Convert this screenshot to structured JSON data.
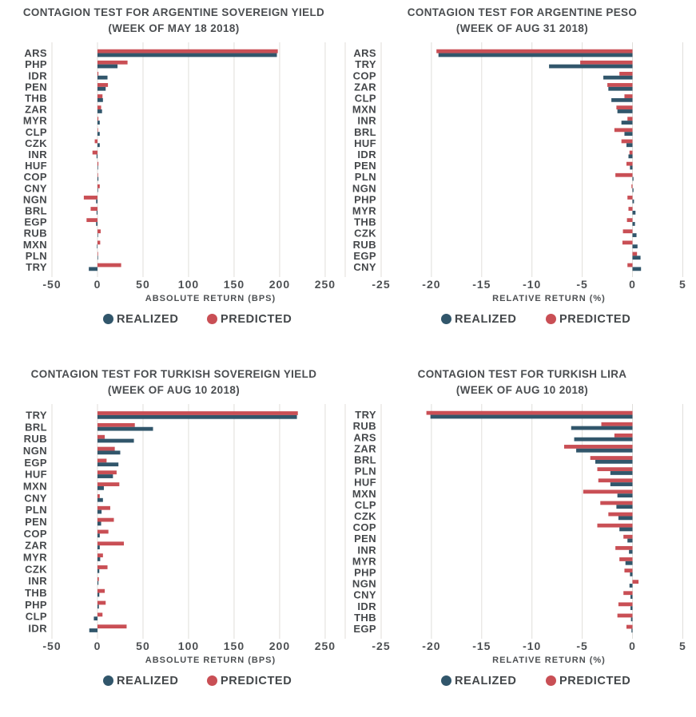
{
  "colors": {
    "realized": "#31566b",
    "predicted": "#c94f55",
    "grid": "#e0deda",
    "title_text": "#4a4d50",
    "tick_text": "#4d5053",
    "background": "#ffffff"
  },
  "chart_data": [
    {
      "type": "bar",
      "orientation": "horizontal",
      "title_line1": "CONTAGION TEST FOR ARGENTINE SOVEREIGN YIELD",
      "title_line2": "(WEEK OF MAY 18 2018)",
      "xlabel": "ABSOLUTE RETURN (BPS)",
      "xticks": [
        -50,
        0,
        50,
        100,
        150,
        200,
        250
      ],
      "xlim": [
        -50,
        272
      ],
      "grid": true,
      "legend_position": "bottom",
      "categories": [
        "ARS",
        "PHP",
        "IDR",
        "PEN",
        "THB",
        "ZAR",
        "MYR",
        "CLP",
        "CZK",
        "INR",
        "HUF",
        "COP",
        "CNY",
        "NGN",
        "BRL",
        "EGP",
        "RUB",
        "MXN",
        "PLN",
        "TRY"
      ],
      "series": [
        {
          "name": "REALIZED",
          "color": "#31566b",
          "values": [
            197,
            22,
            11,
            9,
            6,
            5,
            2.5,
            2.5,
            2.5,
            -1,
            0.5,
            1,
            0.5,
            -1.5,
            -1,
            -1.5,
            0.5,
            -0.5,
            0.5,
            -9.5
          ]
        },
        {
          "name": "PREDICTED",
          "color": "#c94f55",
          "values": [
            198,
            33,
            1,
            11.5,
            5.5,
            4,
            1,
            0.5,
            -3,
            -5.5,
            1,
            0.5,
            2.5,
            -15,
            -7.5,
            -12,
            3.5,
            3,
            0.5,
            26
          ]
        }
      ]
    },
    {
      "type": "bar",
      "orientation": "horizontal",
      "title_line1": "CONTAGION TEST FOR ARGENTINE PESO",
      "title_line2": "(WEEK OF AUG 31 2018)",
      "xlabel": "RELATIVE RETURN (%)",
      "xticks": [
        -25,
        -20,
        -15,
        -10,
        -5,
        0,
        5
      ],
      "xlim": [
        -25,
        6
      ],
      "grid": true,
      "legend_position": "bottom",
      "categories": [
        "ARS",
        "TRY",
        "COP",
        "ZAR",
        "CLP",
        "MXN",
        "INR",
        "BRL",
        "HUF",
        "IDR",
        "PEN",
        "PLN",
        "NGN",
        "PHP",
        "MYR",
        "THB",
        "CZK",
        "RUB",
        "EGP",
        "CNY"
      ],
      "series": [
        {
          "name": "REALIZED",
          "color": "#31566b",
          "values": [
            -19.3,
            -8.3,
            -2.9,
            -2.4,
            -2.1,
            -1.5,
            -1.1,
            -0.8,
            -0.6,
            -0.4,
            -0.25,
            0.1,
            0.1,
            0.15,
            0.3,
            0.25,
            0.4,
            0.5,
            0.8,
            0.85
          ]
        },
        {
          "name": "PREDICTED",
          "color": "#c94f55",
          "values": [
            -19.5,
            -5.2,
            -1.3,
            -2.5,
            -0.8,
            -1.6,
            -0.5,
            -1.8,
            -1.1,
            -0.3,
            -0.6,
            -1.7,
            -0.1,
            -0.5,
            -0.4,
            -0.55,
            -0.95,
            -1.0,
            0.45,
            -0.5
          ]
        }
      ]
    },
    {
      "type": "bar",
      "orientation": "horizontal",
      "title_line1": "CONTAGION TEST FOR TURKISH SOVEREIGN YIELD",
      "title_line2": "(WEEK OF AUG 10 2018)",
      "xlabel": "ABSOLUTE RETURN (BPS)",
      "xticks": [
        -50,
        0,
        50,
        100,
        150,
        200,
        250
      ],
      "xlim": [
        -50,
        272
      ],
      "grid": true,
      "legend_position": "bottom",
      "categories": [
        "TRY",
        "BRL",
        "RUB",
        "NGN",
        "EGP",
        "HUF",
        "MXN",
        "CNY",
        "PLN",
        "PEN",
        "COP",
        "ZAR",
        "MYR",
        "CZK",
        "INR",
        "THB",
        "PHP",
        "CLP",
        "IDR"
      ],
      "series": [
        {
          "name": "REALIZED",
          "color": "#31566b",
          "values": [
            219,
            61,
            40,
            25,
            23,
            17,
            7,
            6,
            4.5,
            4,
            2.5,
            2.5,
            3,
            2,
            1,
            2,
            1.5,
            -4,
            -9
          ]
        },
        {
          "name": "PREDICTED",
          "color": "#c94f55",
          "values": [
            220,
            41,
            8,
            19,
            10,
            21,
            24,
            2.5,
            14,
            18,
            12,
            29,
            6,
            11,
            1.5,
            8,
            9,
            5.5,
            32
          ]
        }
      ]
    },
    {
      "type": "bar",
      "orientation": "horizontal",
      "title_line1": "CONTAGION TEST FOR TURKISH LIRA",
      "title_line2": "(WEEK OF AUG 10 2018)",
      "xlabel": "RELATIVE RETURN (%)",
      "xticks": [
        -25,
        -20,
        -15,
        -10,
        -5,
        0,
        5
      ],
      "xlim": [
        -25,
        6
      ],
      "grid": true,
      "legend_position": "bottom",
      "categories": [
        "TRY",
        "RUB",
        "ARS",
        "ZAR",
        "BRL",
        "PLN",
        "HUF",
        "MXN",
        "CLP",
        "CZK",
        "COP",
        "PEN",
        "INR",
        "MYR",
        "PHP",
        "NGN",
        "CNY",
        "IDR",
        "THB",
        "EGP"
      ],
      "series": [
        {
          "name": "REALIZED",
          "color": "#31566b",
          "values": [
            -20.1,
            -6.1,
            -5.8,
            -5.6,
            -3.7,
            -2.2,
            -2.2,
            -1.5,
            -1.6,
            -1.4,
            -1.3,
            -0.5,
            -0.35,
            -0.7,
            -0.25,
            -0.3,
            -0.2,
            -0.2,
            -0.15,
            -0.1
          ]
        },
        {
          "name": "PREDICTED",
          "color": "#c94f55",
          "values": [
            -20.5,
            -3.1,
            -1.8,
            -6.8,
            -4.2,
            -3.5,
            -3.4,
            -4.9,
            -3.2,
            -2.4,
            -3.5,
            -0.9,
            -1.7,
            -1.3,
            -0.8,
            0.6,
            -0.9,
            -1.4,
            -1.5,
            -0.6
          ]
        }
      ]
    }
  ]
}
